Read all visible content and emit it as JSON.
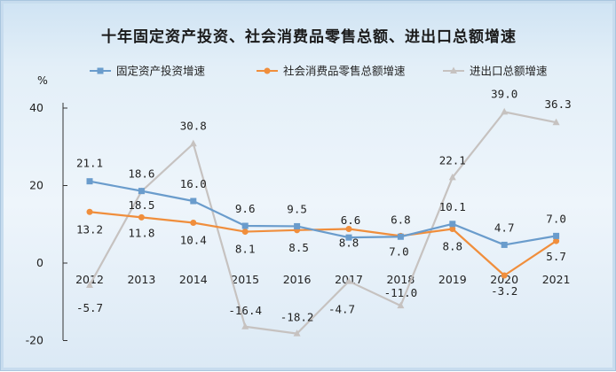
{
  "chart_data": {
    "type": "line",
    "title": "十年固定资产投资、社会消费品零售总额、进出口总额增速",
    "ylabel": "%",
    "xlabel": "",
    "categories": [
      "2012",
      "2013",
      "2014",
      "2015",
      "2016",
      "2017",
      "2018",
      "2019",
      "2020",
      "2021"
    ],
    "ylim": [
      -20,
      40
    ],
    "yticks": [
      -20,
      0,
      20,
      40
    ],
    "grid": false,
    "legend_position": "top",
    "series": [
      {
        "name": "固定资产投资增速",
        "color": "#6a9ccc",
        "marker": "square",
        "values": [
          21.1,
          18.6,
          16.0,
          9.6,
          9.5,
          6.6,
          6.8,
          10.1,
          4.7,
          7.0
        ],
        "labels": [
          "21.1",
          "18.6",
          "16.0",
          "9.6",
          "9.5",
          "6.6",
          "6.8",
          "10.1",
          "4.7",
          "7.0"
        ]
      },
      {
        "name": "社会消费品零售总额增速",
        "color": "#f08e3c",
        "marker": "circle",
        "values": [
          13.2,
          11.8,
          10.4,
          8.1,
          8.5,
          8.8,
          7.0,
          8.8,
          -3.2,
          5.7
        ],
        "labels": [
          "13.2",
          "11.8",
          "10.4",
          "8.1",
          "8.5",
          "8.8",
          "7.0",
          "8.8",
          "-3.2",
          "5.7"
        ]
      },
      {
        "name": "进出口总额增速",
        "color": "#c6c2c0",
        "marker": "triangle",
        "values": [
          -5.7,
          18.5,
          30.8,
          -16.4,
          -18.2,
          -4.7,
          -11.0,
          22.1,
          39.0,
          36.3
        ],
        "labels": [
          "-5.7",
          "18.5",
          "30.8",
          "-16.4",
          "-18.2",
          "-4.7",
          "-11.0",
          "22.1",
          "39.0",
          "36.3"
        ]
      }
    ]
  }
}
